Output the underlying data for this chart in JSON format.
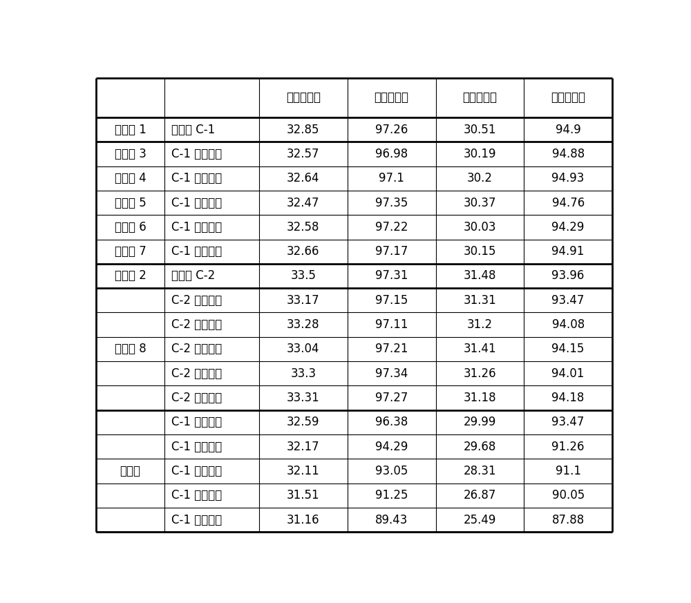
{
  "header": [
    "转化率，％",
    "选择性，％",
    "转化率，％",
    "选择性，％"
  ],
  "col1_labels": [
    "新鲜剂 C-1",
    "C-1 再生一次",
    "C-1 再生二次",
    "C-1 再生三次",
    "C-1 再生四次",
    "C-1 再生五次",
    "新鲜剂 C-2",
    "C-2 再生一次",
    "C-2 再生二次",
    "C-2 再生三次",
    "C-2 再生四次",
    "C-2 再生五次",
    "C-1 再生一次",
    "C-1 再生二次",
    "C-1 再生三次",
    "C-1 再生四次",
    "C-1 再生五次"
  ],
  "data_values": [
    [
      "32.85",
      "97.26",
      "30.51",
      "94.9"
    ],
    [
      "32.57",
      "96.98",
      "30.19",
      "94.88"
    ],
    [
      "32.64",
      "97.1",
      "30.2",
      "94.93"
    ],
    [
      "32.47",
      "97.35",
      "30.37",
      "94.76"
    ],
    [
      "32.58",
      "97.22",
      "30.03",
      "94.29"
    ],
    [
      "32.66",
      "97.17",
      "30.15",
      "94.91"
    ],
    [
      "33.5",
      "97.31",
      "31.48",
      "93.96"
    ],
    [
      "33.17",
      "97.15",
      "31.31",
      "93.47"
    ],
    [
      "33.28",
      "97.11",
      "31.2",
      "94.08"
    ],
    [
      "33.04",
      "97.21",
      "31.41",
      "94.15"
    ],
    [
      "33.3",
      "97.34",
      "31.26",
      "94.01"
    ],
    [
      "33.31",
      "97.27",
      "31.18",
      "94.18"
    ],
    [
      "32.59",
      "96.38",
      "29.99",
      "93.47"
    ],
    [
      "32.17",
      "94.29",
      "29.68",
      "91.26"
    ],
    [
      "32.11",
      "93.05",
      "28.31",
      "91.1"
    ],
    [
      "31.51",
      "91.25",
      "26.87",
      "90.05"
    ],
    [
      "31.16",
      "89.43",
      "25.49",
      "87.88"
    ]
  ],
  "merged_col0": [
    {
      "label": "实施例 1",
      "start": 0,
      "end": 0
    },
    {
      "label": "实施例 3",
      "start": 1,
      "end": 1
    },
    {
      "label": "实施例 4",
      "start": 2,
      "end": 2
    },
    {
      "label": "实施例 5",
      "start": 3,
      "end": 3
    },
    {
      "label": "实施例 6",
      "start": 4,
      "end": 4
    },
    {
      "label": "实施例 7",
      "start": 5,
      "end": 5
    },
    {
      "label": "实施例 2",
      "start": 6,
      "end": 6
    },
    {
      "label": "实施例 8",
      "start": 7,
      "end": 11
    },
    {
      "label": "比较例",
      "start": 12,
      "end": 16
    }
  ],
  "thick_after_rows": [
    0,
    5,
    6,
    11,
    16
  ],
  "bg_color": "#ffffff",
  "line_color": "#000000",
  "text_color": "#000000",
  "font_size": 12,
  "header_font_size": 12
}
